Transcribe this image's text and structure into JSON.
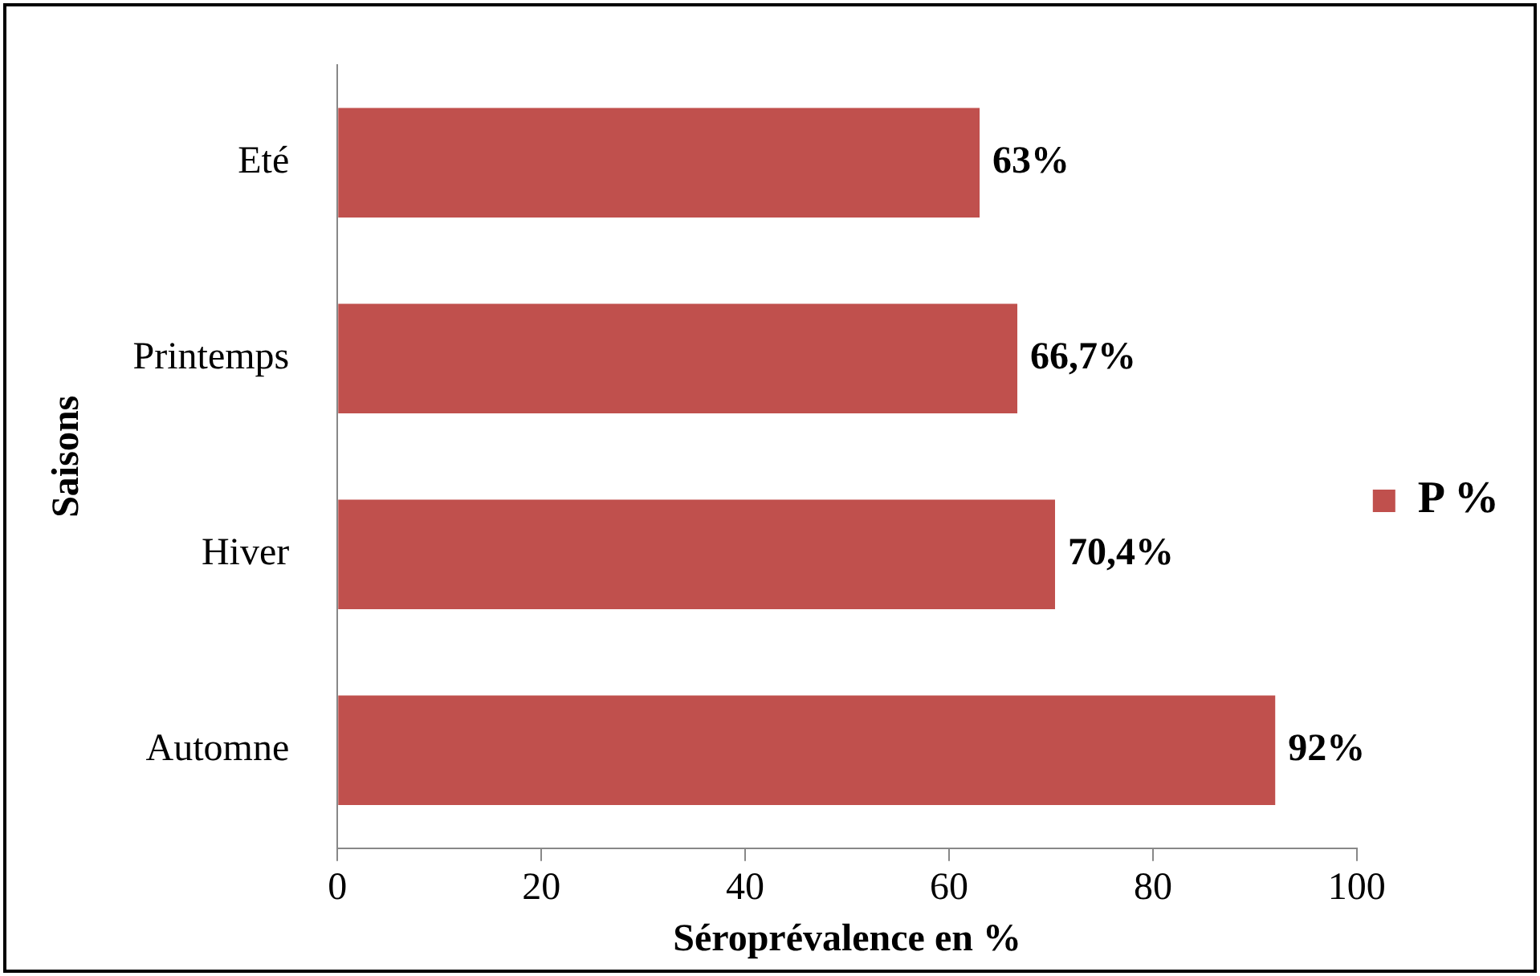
{
  "chart_data": {
    "type": "bar",
    "orientation": "horizontal",
    "categories": [
      "Eté",
      "Printemps",
      "Hiver",
      "Automne"
    ],
    "series": [
      {
        "name": "P %",
        "color": "#c0504d",
        "values": [
          63,
          66.7,
          70.4,
          92
        ],
        "value_labels": [
          "63%",
          "66,7%",
          "70,4%",
          "92%"
        ]
      }
    ],
    "xlim": [
      0,
      100
    ],
    "xticks": [
      0,
      20,
      40,
      60,
      80,
      100
    ],
    "xlabel": "Séroprévalence en %",
    "ylabel": "Saisons",
    "legend": "right",
    "grid": false
  }
}
